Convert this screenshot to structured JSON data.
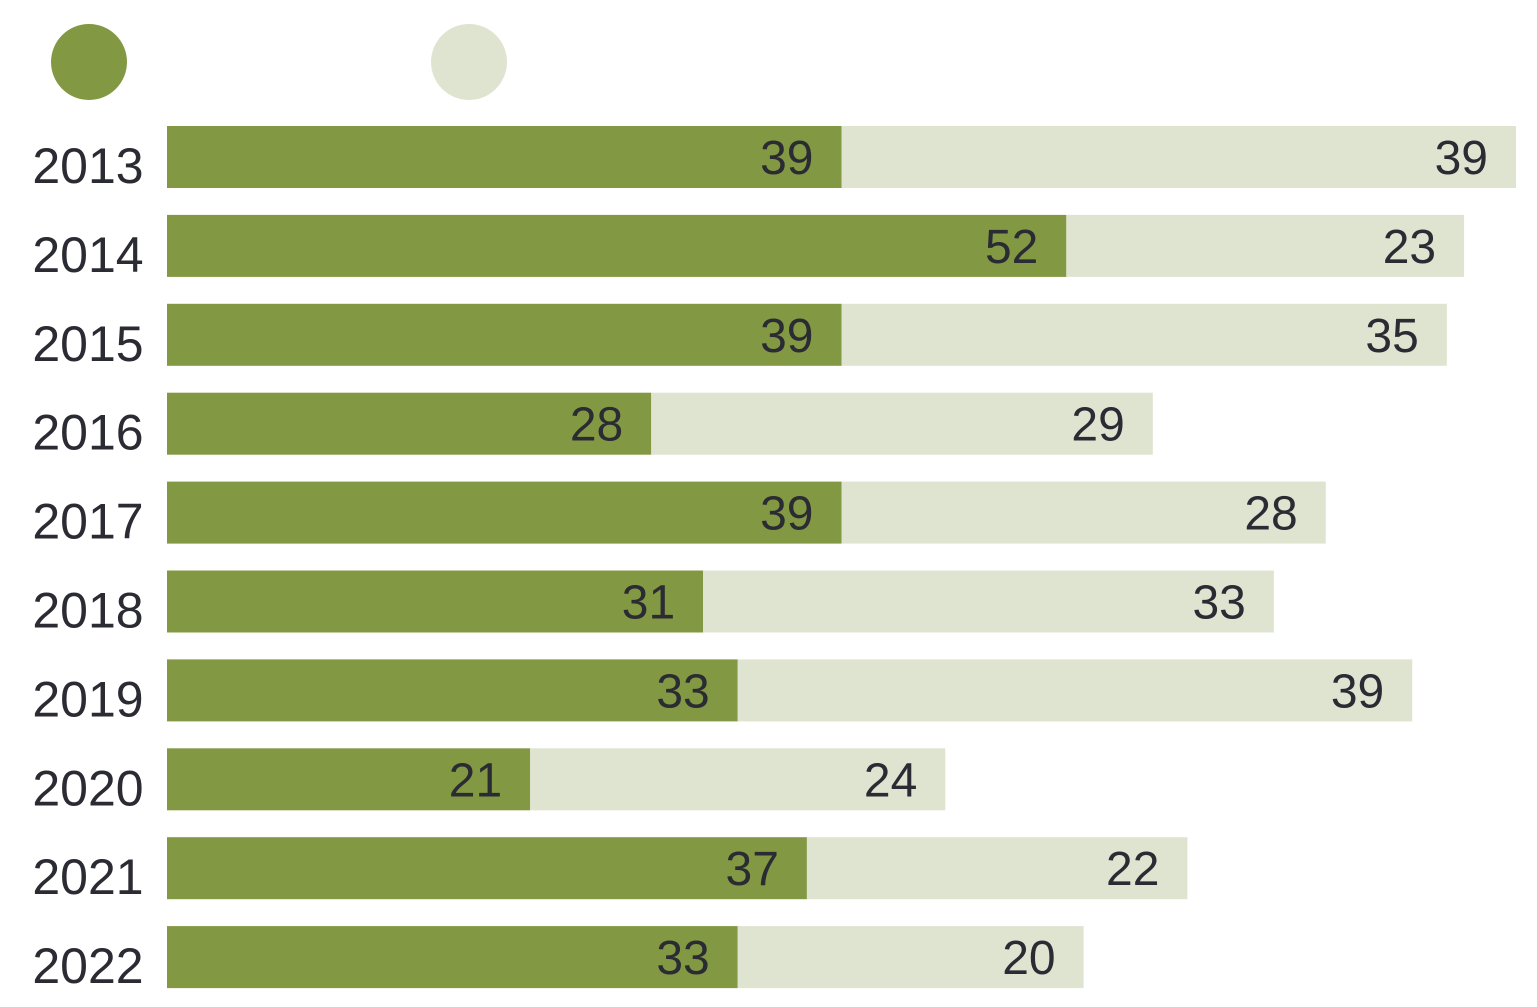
{
  "chart_data": {
    "type": "bar",
    "orientation": "horizontal",
    "stacked": true,
    "categories": [
      "2013",
      "2014",
      "2015",
      "2016",
      "2017",
      "2018",
      "2019",
      "2020",
      "2021",
      "2022"
    ],
    "series": [
      {
        "color": "#839843",
        "values": [
          39,
          52,
          39,
          28,
          39,
          31,
          33,
          21,
          37,
          33
        ]
      },
      {
        "color": "#dfe4d1",
        "values": [
          39,
          23,
          35,
          29,
          28,
          33,
          39,
          24,
          22,
          20
        ]
      }
    ],
    "title": "",
    "xlabel": "",
    "ylabel": "",
    "xlim": [
      0,
      78
    ],
    "grid": false,
    "legend": "top-left"
  }
}
